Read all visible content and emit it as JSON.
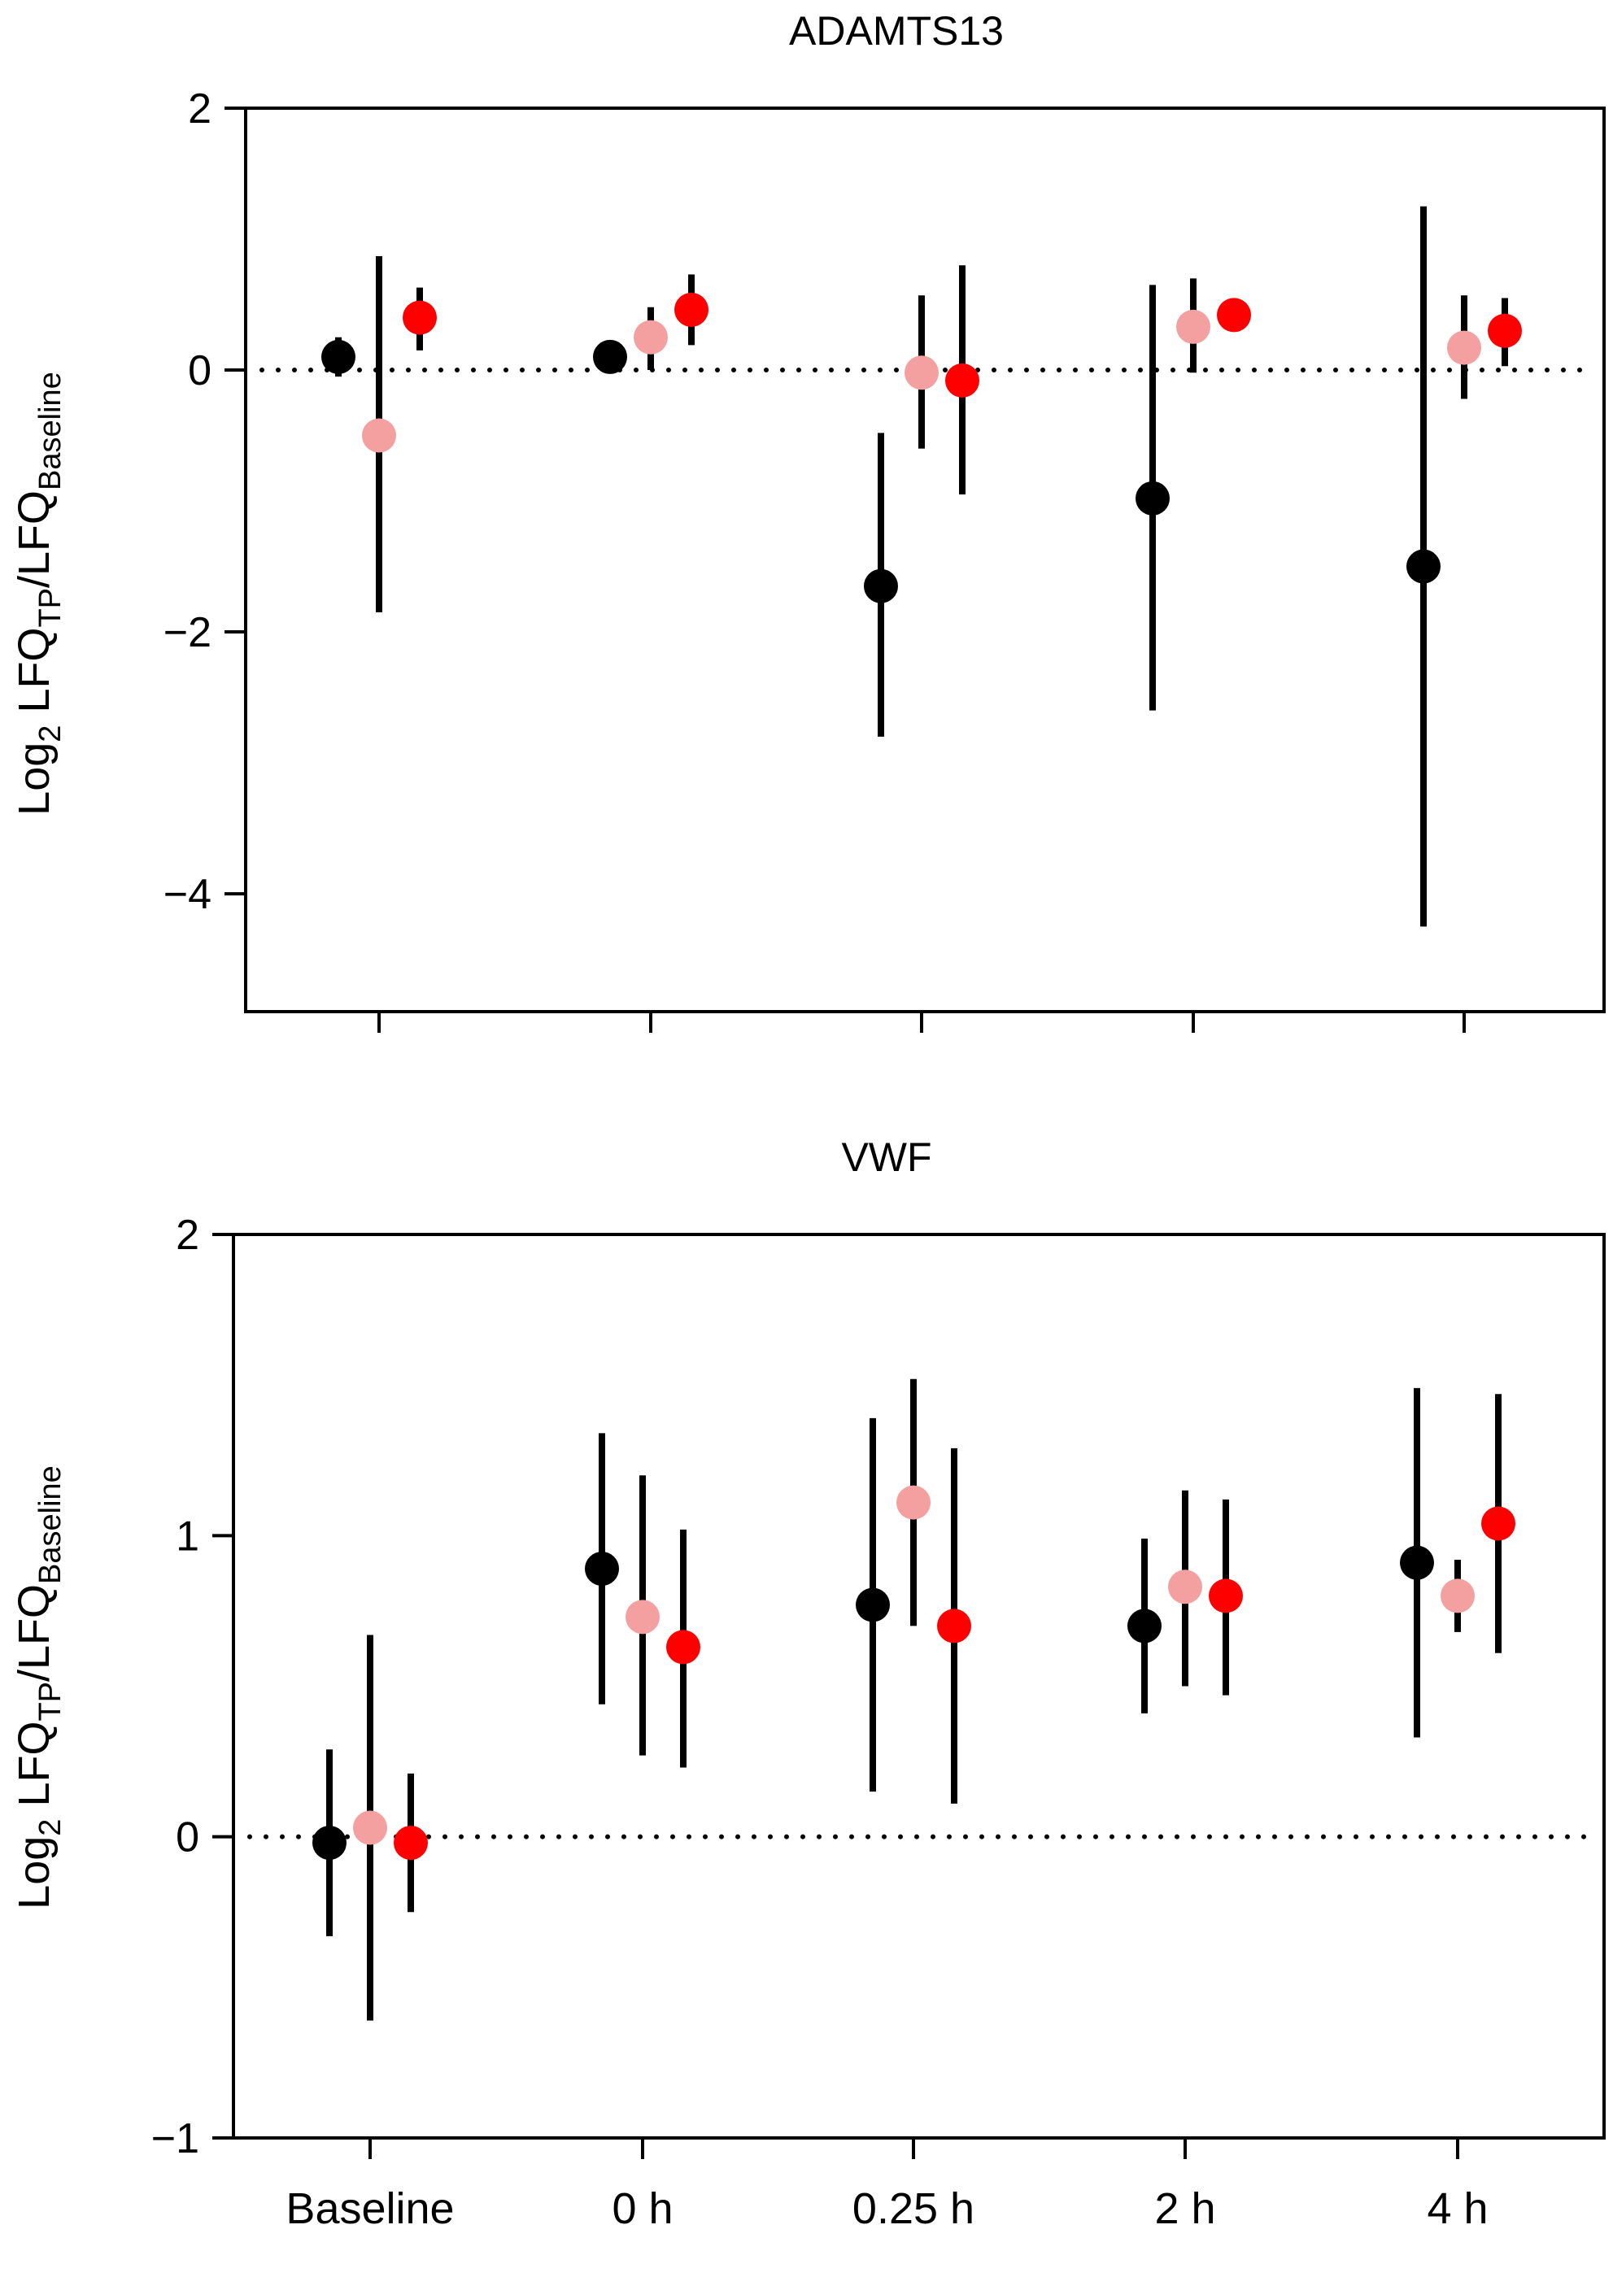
{
  "colors": {
    "series": [
      "#000000",
      "#f4a0a0",
      "#ff0000"
    ],
    "axis": "#000000",
    "background": "#ffffff"
  },
  "chart_data": [
    {
      "type": "scatter",
      "subtype": "point-with-error-bars",
      "title": "ADAMTS13",
      "ylabel": {
        "base": "Log",
        "base_sub": "2",
        "main": " LFQ",
        "main_sub": "TP",
        "slash": "/LFQ",
        "slash_sub": "Baseline"
      },
      "xlabel": "",
      "categories": [
        "Baseline",
        "0 h",
        "0.25 h",
        "2 h",
        "4 h"
      ],
      "show_x_tick_labels": false,
      "ylim": [
        -4.9,
        2.0
      ],
      "yticks": [
        2,
        0,
        -2,
        -4
      ],
      "ytick_labels": [
        "2",
        "0",
        "−2",
        "−4"
      ],
      "reference_line": {
        "y": 0,
        "style": "dotted"
      },
      "grid": false,
      "legend": "none",
      "series": [
        {
          "values": [
            0.1,
            0.1,
            -1.65,
            -0.98,
            -1.5
          ],
          "lower": [
            -0.05,
            0.0,
            -2.8,
            -2.6,
            -4.25
          ],
          "upper": [
            0.25,
            0.22,
            -0.48,
            0.65,
            1.25
          ]
        },
        {
          "values": [
            -0.5,
            0.25,
            -0.02,
            0.33,
            0.17
          ],
          "lower": [
            -1.85,
            0.0,
            -0.6,
            -0.02,
            -0.22
          ],
          "upper": [
            0.87,
            0.48,
            0.57,
            0.7,
            0.57
          ]
        },
        {
          "values": [
            0.4,
            0.46,
            -0.08,
            0.42,
            0.3
          ],
          "lower": [
            0.15,
            0.19,
            -0.95,
            0.42,
            0.03
          ],
          "upper": [
            0.63,
            0.73,
            0.8,
            0.42,
            0.55
          ]
        }
      ]
    },
    {
      "type": "scatter",
      "subtype": "point-with-error-bars",
      "title": "VWF",
      "ylabel": {
        "base": "Log",
        "base_sub": "2",
        "main": " LFQ",
        "main_sub": "TP",
        "slash": "/LFQ",
        "slash_sub": "Baseline"
      },
      "xlabel": "",
      "categories": [
        "Baseline",
        "0 h",
        "0.25 h",
        "2 h",
        "4 h"
      ],
      "show_x_tick_labels": true,
      "ylim": [
        -1.0,
        2.0
      ],
      "yticks": [
        2,
        1,
        0,
        -1
      ],
      "ytick_labels": [
        "2",
        "1",
        "0",
        "−1"
      ],
      "reference_line": {
        "y": 0,
        "style": "dotted"
      },
      "grid": false,
      "legend": "none",
      "series": [
        {
          "values": [
            -0.02,
            0.89,
            0.77,
            0.7,
            0.91
          ],
          "lower": [
            -0.33,
            0.44,
            0.15,
            0.41,
            0.33
          ],
          "upper": [
            0.29,
            1.34,
            1.39,
            0.99,
            1.49
          ]
        },
        {
          "values": [
            0.03,
            0.73,
            1.11,
            0.83,
            0.8
          ],
          "lower": [
            -0.61,
            0.27,
            0.7,
            0.5,
            0.68
          ],
          "upper": [
            0.67,
            1.2,
            1.52,
            1.15,
            0.92
          ]
        },
        {
          "values": [
            -0.02,
            0.63,
            0.7,
            0.8,
            1.04
          ],
          "lower": [
            -0.25,
            0.23,
            0.11,
            0.47,
            0.61
          ],
          "upper": [
            0.21,
            1.02,
            1.29,
            1.12,
            1.47
          ]
        }
      ]
    }
  ]
}
